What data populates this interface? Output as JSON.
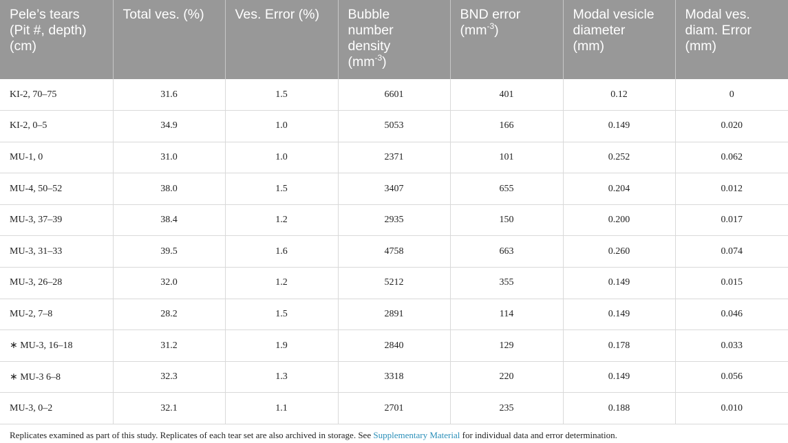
{
  "header": {
    "col1": [
      "Pele’s tears",
      "(Pit #, depth)",
      "(cm)"
    ],
    "col2": [
      "Total ves. (%)"
    ],
    "col3": [
      "Ves. Error (%)"
    ],
    "col4": [
      "Bubble",
      "number",
      "density"
    ],
    "col4_unit": "(mm",
    "col4_exp": "-3",
    "col4_close": ")",
    "col5": [
      "BND error"
    ],
    "col5_unit": "(mm",
    "col5_exp": "-3",
    "col5_close": ")",
    "col6": [
      "Modal vesicle",
      "diameter",
      "(mm)"
    ],
    "col7": [
      "Modal ves.",
      "diam. Error",
      "(mm)"
    ]
  },
  "rows": [
    [
      "KI-2, 70–75",
      "31.6",
      "1.5",
      "6601",
      "401",
      "0.12",
      "0"
    ],
    [
      "KI-2, 0–5",
      "34.9",
      "1.0",
      "5053",
      "166",
      "0.149",
      "0.020"
    ],
    [
      "MU-1, 0",
      "31.0",
      "1.0",
      "2371",
      "101",
      "0.252",
      "0.062"
    ],
    [
      "MU-4, 50–52",
      "38.0",
      "1.5",
      "3407",
      "655",
      "0.204",
      "0.012"
    ],
    [
      "MU-3, 37–39",
      "38.4",
      "1.2",
      "2935",
      "150",
      "0.200",
      "0.017"
    ],
    [
      "MU-3, 31–33",
      "39.5",
      "1.6",
      "4758",
      "663",
      "0.260",
      "0.074"
    ],
    [
      "MU-3, 26–28",
      "32.0",
      "1.2",
      "5212",
      "355",
      "0.149",
      "0.015"
    ],
    [
      "MU-2, 7–8",
      "28.2",
      "1.5",
      "2891",
      "114",
      "0.149",
      "0.046"
    ],
    [
      "∗ MU-3, 16–18",
      "31.2",
      "1.9",
      "2840",
      "129",
      "0.178",
      "0.033"
    ],
    [
      "∗ MU-3 6–8",
      "32.3",
      "1.3",
      "3318",
      "220",
      "0.149",
      "0.056"
    ],
    [
      "MU-3, 0–2",
      "32.1",
      "1.1",
      "2701",
      "235",
      "0.188",
      "0.010"
    ]
  ],
  "footnote": {
    "text_before": "Replicates examined as part of this study. Replicates of each tear set are also archived in storage. See ",
    "link": "Supplementary Material",
    "text_after": " for individual data and error determination."
  }
}
